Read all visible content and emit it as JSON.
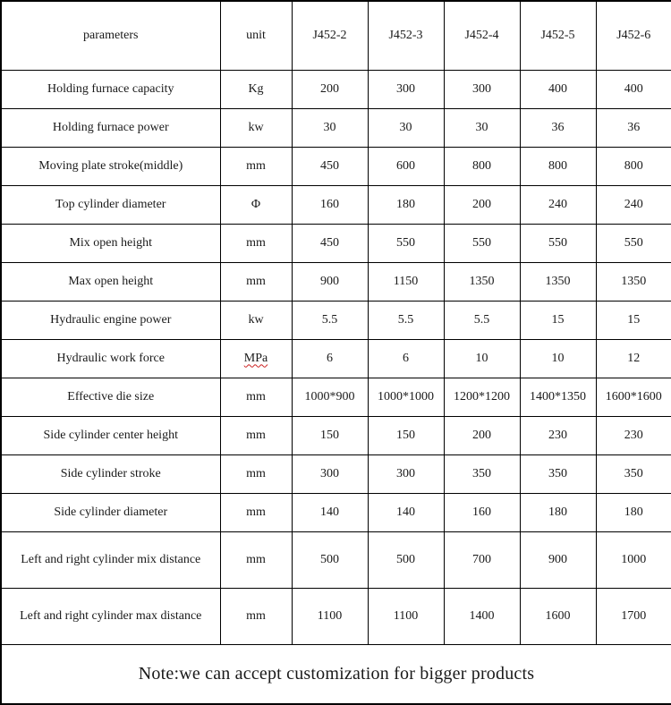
{
  "table": {
    "columns": [
      "parameters",
      "unit",
      "J452-2",
      "J452-3",
      "J452-4",
      "J452-5",
      "J452-6"
    ],
    "rows": [
      {
        "parameter": "Holding furnace capacity",
        "unit": "Kg",
        "values": [
          "200",
          "300",
          "300",
          "400",
          "400"
        ]
      },
      {
        "parameter": "Holding furnace power",
        "unit": "kw",
        "values": [
          "30",
          "30",
          "30",
          "36",
          "36"
        ]
      },
      {
        "parameter": "Moving plate stroke(middle)",
        "unit": "mm",
        "values": [
          "450",
          "600",
          "800",
          "800",
          "800"
        ]
      },
      {
        "parameter": "Top cylinder diameter",
        "unit": "Φ",
        "values": [
          "160",
          "180",
          "200",
          "240",
          "240"
        ]
      },
      {
        "parameter": "Mix open height",
        "unit": "mm",
        "values": [
          "450",
          "550",
          "550",
          "550",
          "550"
        ]
      },
      {
        "parameter": "Max open height",
        "unit": "mm",
        "values": [
          "900",
          "1150",
          "1350",
          "1350",
          "1350"
        ]
      },
      {
        "parameter": "Hydraulic engine power",
        "unit": "kw",
        "values": [
          "5.5",
          "5.5",
          "5.5",
          "15",
          "15"
        ]
      },
      {
        "parameter": "Hydraulic work force",
        "unit": "MPa",
        "unit_spellcheck": true,
        "values": [
          "6",
          "6",
          "10",
          "10",
          "12"
        ]
      },
      {
        "parameter": "Effective die size",
        "unit": "mm",
        "values": [
          "1000*900",
          "1000*1000",
          "1200*1200",
          "1400*1350",
          "1600*1600"
        ]
      },
      {
        "parameter": "Side cylinder center height",
        "unit": "mm",
        "values": [
          "150",
          "150",
          "200",
          "230",
          "230"
        ]
      },
      {
        "parameter": "Side cylinder stroke",
        "unit": "mm",
        "values": [
          "300",
          "300",
          "350",
          "350",
          "350"
        ]
      },
      {
        "parameter": "Side cylinder diameter",
        "unit": "mm",
        "values": [
          "140",
          "140",
          "160",
          "180",
          "180"
        ]
      },
      {
        "parameter": "Left and right cylinder mix distance",
        "unit": "mm",
        "tall": true,
        "values": [
          "500",
          "500",
          "700",
          "900",
          "1000"
        ]
      },
      {
        "parameter": "Left and right cylinder max distance",
        "unit": "mm",
        "tall": true,
        "values": [
          "1100",
          "1100",
          "1400",
          "1600",
          "1700"
        ]
      }
    ],
    "note": "Note:we can accept customization for bigger  products"
  },
  "colors": {
    "border": "#000000",
    "text": "#1a1a1a",
    "background": "#ffffff",
    "spellcheck_underline": "#cc2222"
  }
}
